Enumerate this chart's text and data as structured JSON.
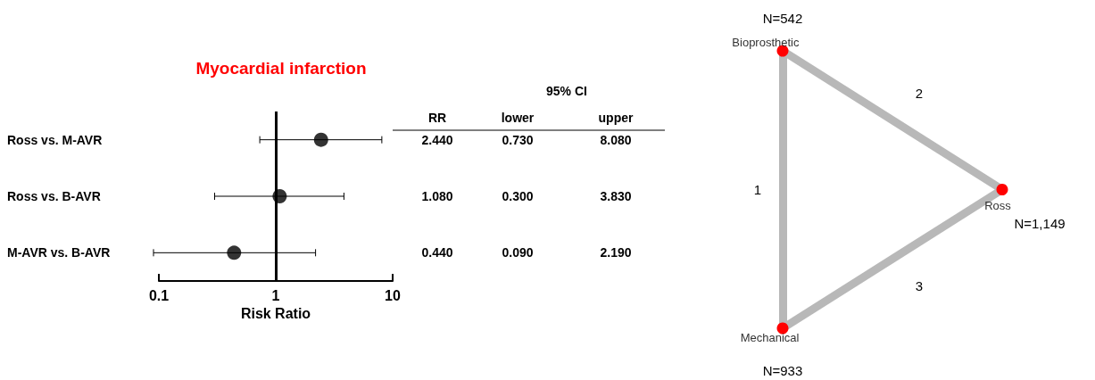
{
  "chart_data": [
    {
      "type": "scatter",
      "title": "Myocardial infarction",
      "orientation": "horizontal",
      "categories": [
        "Ross vs. M-AVR",
        "Ross vs. B-AVR",
        "M-AVR vs. B-AVR"
      ],
      "values": [
        2.44,
        1.08,
        0.44
      ],
      "errors": [
        [
          0.73,
          8.08
        ],
        [
          0.3,
          3.83
        ],
        [
          0.09,
          2.19
        ]
      ],
      "value_labels": [
        "2.440",
        "1.080",
        "0.440"
      ],
      "annotations": [
        "95% CI",
        "RR",
        "lower",
        "upper",
        "0.730",
        "8.080",
        "0.300",
        "3.830",
        "0.090",
        "2.190"
      ],
      "color": "#000000",
      "marker": "circle",
      "log": "x",
      "xlim": [
        0.1,
        10
      ],
      "xticks": [
        0.1,
        1,
        10
      ],
      "xlabel": "Risk Ratio",
      "grid": false,
      "ref_lines": [
        {
          "axis": "x",
          "value": 1
        }
      ]
    },
    {
      "type": "other",
      "categories": [
        "Bioprosthetic",
        "Ross",
        "Mechanical"
      ],
      "values": [
        542,
        1149,
        933
      ],
      "value_labels": [
        "N=542",
        "N=1,149",
        "N=933"
      ],
      "color": "#ff0000",
      "annotations": [
        "1",
        "2",
        "3"
      ]
    }
  ]
}
